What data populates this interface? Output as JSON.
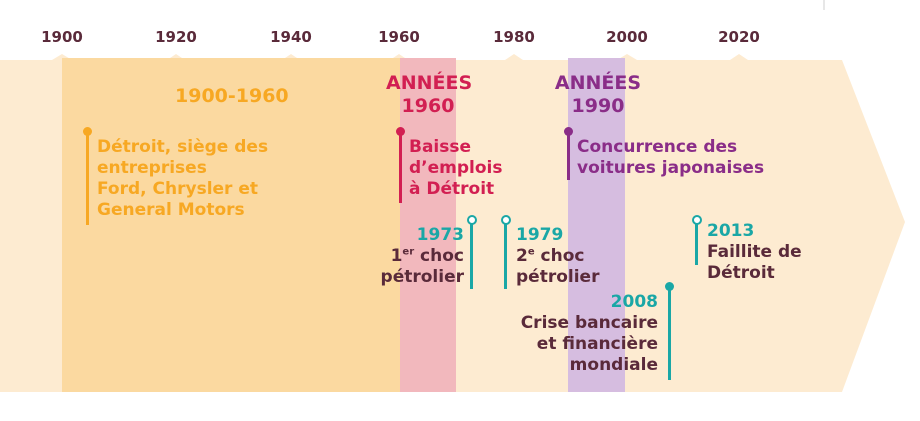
{
  "colors": {
    "band_bg": "#fdebd1",
    "period_1900_1960": "#fbd9a0",
    "period_1960s": "#f2b8bd",
    "period_1990s": "#d6bde0",
    "orange": "#f7a823",
    "red": "#d21f52",
    "purple": "#8a2d88",
    "teal": "#1aa7a6",
    "dark": "#5a2a3a"
  },
  "axis": {
    "years": [
      "1900",
      "1920",
      "1940",
      "1960",
      "1980",
      "2000",
      "2020"
    ]
  },
  "periods": {
    "p1": {
      "title": "1900-1960",
      "text": [
        "Détroit, siège des",
        "entreprises",
        "Ford, Chrysler et",
        "General Motors"
      ]
    },
    "p2": {
      "title_line1": "ANNÉES",
      "title_line2": "1960",
      "text": [
        "Baisse",
        "d’emplois",
        "à Détroit"
      ]
    },
    "p3": {
      "title_line1": "ANNÉES",
      "title_line2": "1990",
      "text": [
        "Concurrence des",
        "voitures japonaises"
      ]
    }
  },
  "events": {
    "e1973": {
      "year": "1973",
      "line1_num": "1",
      "line1_sup": "er",
      "line1_rest": " choc",
      "line2": "pétrolier"
    },
    "e1979": {
      "year": "1979",
      "line1_num": "2",
      "line1_sup": "e",
      "line1_rest": " choc",
      "line2": "pétrolier"
    },
    "e2008": {
      "year": "2008",
      "text": [
        "Crise bancaire",
        "et financière",
        "mondiale"
      ]
    },
    "e2013": {
      "year": "2013",
      "text": [
        "Faillite de",
        "Détroit"
      ]
    }
  }
}
